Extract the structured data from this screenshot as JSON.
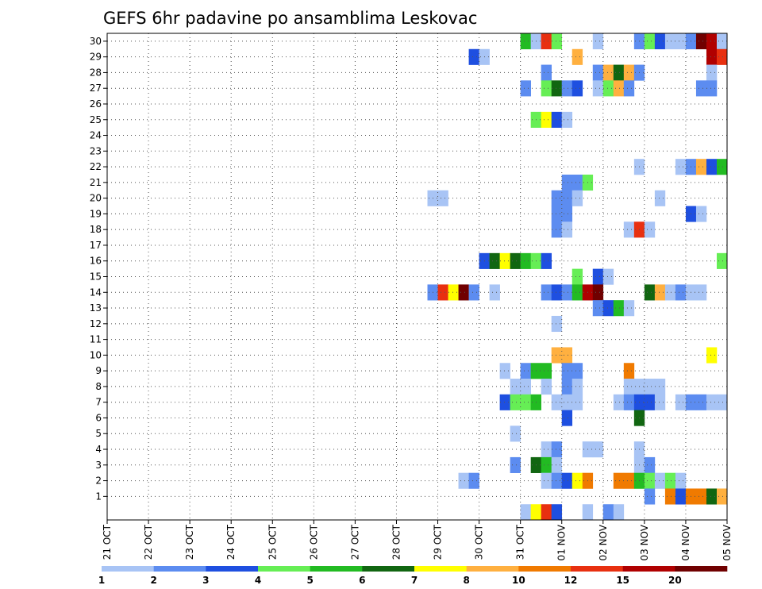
{
  "chart_data": {
    "type": "heatmap",
    "title": "GEFS 6hr padavine po ansamblima Leskovac",
    "xlabel": "",
    "ylabel": "",
    "x_tick_labels": [
      "21 OCT",
      "22 OCT",
      "23 OCT",
      "24 OCT",
      "25 OCT",
      "26 OCT",
      "27 OCT",
      "28 OCT",
      "29 OCT",
      "30 OCT",
      "31 OCT",
      "01 NOV",
      "02 NOV",
      "03 NOV",
      "04 NOV",
      "05 NOV"
    ],
    "y_tick_labels": [
      "1",
      "2",
      "3",
      "4",
      "5",
      "6",
      "7",
      "8",
      "9",
      "10",
      "11",
      "12",
      "13",
      "14",
      "15",
      "16",
      "17",
      "18",
      "19",
      "20",
      "21",
      "22",
      "23",
      "24",
      "25",
      "26",
      "27",
      "28",
      "29",
      "30"
    ],
    "x_range_days": [
      0,
      15
    ],
    "y_range_members": [
      0,
      30
    ],
    "time_step_hours": 6,
    "grid": "dotted",
    "legend": {
      "placement": "bottom",
      "labels": [
        "1",
        "2",
        "3",
        "4",
        "5",
        "6",
        "7",
        "8",
        "10",
        "12",
        "15",
        "20"
      ],
      "colors": [
        "#a8c4f5",
        "#5c8cf0",
        "#1e4fe0",
        "#66ee55",
        "#22bb22",
        "#116611",
        "#ffff00",
        "#ffb040",
        "#f07a00",
        "#e83010",
        "#b00000",
        "#700000"
      ]
    },
    "cells": [
      [
        "30",
        "31 OCT 00",
        5
      ],
      [
        "30",
        "31 OCT 06",
        1
      ],
      [
        "30",
        "31 OCT 12",
        10
      ],
      [
        "30",
        "31 OCT 18",
        4
      ],
      [
        "30",
        "01 NOV 18",
        1
      ],
      [
        "30",
        "02 NOV 18",
        2
      ],
      [
        "30",
        "03 NOV 00",
        4
      ],
      [
        "30",
        "03 NOV 06",
        3
      ],
      [
        "30",
        "03 NOV 12",
        1
      ],
      [
        "30",
        "03 NOV 18",
        1
      ],
      [
        "30",
        "04 NOV 00",
        2
      ],
      [
        "30",
        "04 NOV 06",
        12
      ],
      [
        "30",
        "04 NOV 12",
        11
      ],
      [
        "30",
        "04 NOV 18",
        1
      ],
      [
        "30",
        "05 NOV 00",
        1
      ],
      [
        "29",
        "29 OCT 18",
        3
      ],
      [
        "29",
        "30 OCT 00",
        1
      ],
      [
        "29",
        "01 NOV 06",
        8
      ],
      [
        "29",
        "04 NOV 12",
        11
      ],
      [
        "29",
        "04 NOV 18",
        10
      ],
      [
        "29",
        "05 NOV 00",
        4
      ],
      [
        "29",
        "05 NOV 06",
        2
      ],
      [
        "28",
        "31 OCT 12",
        2
      ],
      [
        "28",
        "01 NOV 18",
        2
      ],
      [
        "28",
        "02 NOV 00",
        8
      ],
      [
        "28",
        "02 NOV 06",
        6
      ],
      [
        "28",
        "02 NOV 12",
        8
      ],
      [
        "28",
        "02 NOV 18",
        2
      ],
      [
        "28",
        "04 NOV 12",
        1
      ],
      [
        "28",
        "05 NOV 00",
        2
      ],
      [
        "28",
        "05 NOV 06",
        1
      ],
      [
        "27",
        "31 OCT 00",
        2
      ],
      [
        "27",
        "31 OCT 12",
        4
      ],
      [
        "27",
        "31 OCT 18",
        6
      ],
      [
        "27",
        "01 NOV 00",
        2
      ],
      [
        "27",
        "01 NOV 06",
        3
      ],
      [
        "27",
        "01 NOV 18",
        1
      ],
      [
        "27",
        "02 NOV 00",
        4
      ],
      [
        "27",
        "02 NOV 06",
        8
      ],
      [
        "27",
        "02 NOV 12",
        2
      ],
      [
        "27",
        "04 NOV 06",
        2
      ],
      [
        "27",
        "04 NOV 12",
        2
      ],
      [
        "27",
        "05 NOV 06",
        2
      ],
      [
        "27",
        "05 NOV 12",
        11
      ],
      [
        "25",
        "31 OCT 06",
        4
      ],
      [
        "25",
        "31 OCT 12",
        7
      ],
      [
        "25",
        "31 OCT 18",
        3
      ],
      [
        "25",
        "01 NOV 00",
        1
      ],
      [
        "23",
        "05 NOV 12",
        1
      ],
      [
        "22",
        "02 NOV 18",
        1
      ],
      [
        "22",
        "03 NOV 18",
        1
      ],
      [
        "22",
        "04 NOV 00",
        2
      ],
      [
        "22",
        "04 NOV 06",
        8
      ],
      [
        "22",
        "04 NOV 12",
        3
      ],
      [
        "22",
        "04 NOV 18",
        5
      ],
      [
        "22",
        "05 NOV 00",
        1
      ],
      [
        "21",
        "01 NOV 00",
        2
      ],
      [
        "21",
        "01 NOV 06",
        2
      ],
      [
        "21",
        "01 NOV 12",
        4
      ],
      [
        "20",
        "28 OCT 18",
        1
      ],
      [
        "20",
        "29 OCT 00",
        1
      ],
      [
        "20",
        "31 OCT 18",
        2
      ],
      [
        "20",
        "01 NOV 00",
        2
      ],
      [
        "20",
        "01 NOV 06",
        1
      ],
      [
        "20",
        "03 NOV 06",
        1
      ],
      [
        "20",
        "05 NOV 12",
        2
      ],
      [
        "19",
        "31 OCT 18",
        2
      ],
      [
        "19",
        "01 NOV 00",
        2
      ],
      [
        "19",
        "04 NOV 00",
        3
      ],
      [
        "19",
        "04 NOV 06",
        1
      ],
      [
        "18",
        "31 OCT 18",
        2
      ],
      [
        "18",
        "01 NOV 00",
        1
      ],
      [
        "18",
        "02 NOV 12",
        1
      ],
      [
        "18",
        "02 NOV 18",
        10
      ],
      [
        "18",
        "03 NOV 00",
        1
      ],
      [
        "17",
        "05 NOV 06",
        2
      ],
      [
        "17",
        "05 NOV 12",
        2
      ],
      [
        "16",
        "30 OCT 00",
        3
      ],
      [
        "16",
        "30 OCT 06",
        6
      ],
      [
        "16",
        "30 OCT 12",
        7
      ],
      [
        "16",
        "30 OCT 18",
        6
      ],
      [
        "16",
        "31 OCT 00",
        5
      ],
      [
        "16",
        "31 OCT 06",
        4
      ],
      [
        "16",
        "31 OCT 12",
        3
      ],
      [
        "16",
        "04 NOV 18",
        4
      ],
      [
        "16",
        "05 NOV 00",
        1
      ],
      [
        "16",
        "05 NOV 06",
        1
      ],
      [
        "15",
        "01 NOV 06",
        4
      ],
      [
        "15",
        "01 NOV 18",
        3
      ],
      [
        "15",
        "02 NOV 00",
        1
      ],
      [
        "14",
        "28 OCT 18",
        2
      ],
      [
        "14",
        "29 OCT 00",
        10
      ],
      [
        "14",
        "29 OCT 06",
        7
      ],
      [
        "14",
        "29 OCT 12",
        12
      ],
      [
        "14",
        "29 OCT 18",
        2
      ],
      [
        "14",
        "30 OCT 06",
        1
      ],
      [
        "14",
        "31 OCT 12",
        2
      ],
      [
        "14",
        "31 OCT 18",
        3
      ],
      [
        "14",
        "01 NOV 00",
        2
      ],
      [
        "14",
        "01 NOV 06",
        5
      ],
      [
        "14",
        "01 NOV 12",
        11
      ],
      [
        "14",
        "01 NOV 18",
        12
      ],
      [
        "14",
        "03 NOV 00",
        6
      ],
      [
        "14",
        "03 NOV 06",
        8
      ],
      [
        "14",
        "03 NOV 12",
        1
      ],
      [
        "14",
        "03 NOV 18",
        2
      ],
      [
        "14",
        "04 NOV 00",
        1
      ],
      [
        "14",
        "04 NOV 06",
        1
      ],
      [
        "13",
        "01 NOV 18",
        2
      ],
      [
        "13",
        "02 NOV 00",
        3
      ],
      [
        "13",
        "02 NOV 06",
        5
      ],
      [
        "13",
        "02 NOV 12",
        1
      ],
      [
        "12",
        "31 OCT 18",
        1
      ],
      [
        "11",
        "05 NOV 00",
        1
      ],
      [
        "10",
        "31 OCT 18",
        8
      ],
      [
        "10",
        "01 NOV 00",
        8
      ],
      [
        "10",
        "04 NOV 12",
        7
      ],
      [
        "9",
        "30 OCT 12",
        1
      ],
      [
        "9",
        "31 OCT 00",
        2
      ],
      [
        "9",
        "31 OCT 06",
        5
      ],
      [
        "9",
        "31 OCT 12",
        5
      ],
      [
        "9",
        "01 NOV 00",
        2
      ],
      [
        "9",
        "01 NOV 06",
        2
      ],
      [
        "9",
        "02 NOV 12",
        9
      ],
      [
        "9",
        "05 NOV 06",
        2
      ],
      [
        "8",
        "30 OCT 18",
        1
      ],
      [
        "8",
        "31 OCT 00",
        1
      ],
      [
        "8",
        "31 OCT 12",
        1
      ],
      [
        "8",
        "01 NOV 00",
        2
      ],
      [
        "8",
        "01 NOV 06",
        1
      ],
      [
        "8",
        "02 NOV 12",
        1
      ],
      [
        "8",
        "02 NOV 18",
        1
      ],
      [
        "8",
        "03 NOV 00",
        1
      ],
      [
        "8",
        "03 NOV 06",
        1
      ],
      [
        "7",
        "30 OCT 12",
        3
      ],
      [
        "7",
        "30 OCT 18",
        4
      ],
      [
        "7",
        "31 OCT 00",
        4
      ],
      [
        "7",
        "31 OCT 06",
        5
      ],
      [
        "7",
        "31 OCT 18",
        1
      ],
      [
        "7",
        "01 NOV 00",
        1
      ],
      [
        "7",
        "01 NOV 06",
        1
      ],
      [
        "7",
        "02 NOV 06",
        1
      ],
      [
        "7",
        "02 NOV 12",
        2
      ],
      [
        "7",
        "02 NOV 18",
        3
      ],
      [
        "7",
        "03 NOV 00",
        3
      ],
      [
        "7",
        "03 NOV 06",
        1
      ],
      [
        "7",
        "03 NOV 18",
        1
      ],
      [
        "7",
        "04 NOV 00",
        2
      ],
      [
        "7",
        "04 NOV 06",
        2
      ],
      [
        "7",
        "04 NOV 12",
        1
      ],
      [
        "7",
        "04 NOV 18",
        1
      ],
      [
        "6",
        "01 NOV 00",
        3
      ],
      [
        "6",
        "02 NOV 18",
        6
      ],
      [
        "5",
        "30 OCT 18",
        1
      ],
      [
        "4",
        "31 OCT 12",
        1
      ],
      [
        "4",
        "31 OCT 18",
        2
      ],
      [
        "4",
        "01 NOV 12",
        1
      ],
      [
        "4",
        "01 NOV 18",
        1
      ],
      [
        "4",
        "02 NOV 18",
        1
      ],
      [
        "3",
        "30 OCT 18",
        2
      ],
      [
        "3",
        "31 OCT 06",
        6
      ],
      [
        "3",
        "31 OCT 12",
        5
      ],
      [
        "3",
        "31 OCT 18",
        1
      ],
      [
        "3",
        "02 NOV 18",
        1
      ],
      [
        "3",
        "03 NOV 00",
        2
      ],
      [
        "2",
        "29 OCT 12",
        1
      ],
      [
        "2",
        "29 OCT 18",
        2
      ],
      [
        "2",
        "31 OCT 12",
        1
      ],
      [
        "2",
        "31 OCT 18",
        2
      ],
      [
        "2",
        "01 NOV 00",
        3
      ],
      [
        "2",
        "01 NOV 06",
        7
      ],
      [
        "2",
        "01 NOV 12",
        9
      ],
      [
        "2",
        "02 NOV 06",
        9
      ],
      [
        "2",
        "02 NOV 12",
        9
      ],
      [
        "2",
        "02 NOV 18",
        5
      ],
      [
        "2",
        "03 NOV 00",
        4
      ],
      [
        "2",
        "03 NOV 06",
        1
      ],
      [
        "2",
        "03 NOV 12",
        4
      ],
      [
        "2",
        "03 NOV 18",
        1
      ],
      [
        "1",
        "03 NOV 00",
        2
      ],
      [
        "1",
        "03 NOV 12",
        9
      ],
      [
        "1",
        "03 NOV 18",
        3
      ],
      [
        "1",
        "04 NOV 00",
        9
      ],
      [
        "1",
        "04 NOV 06",
        9
      ],
      [
        "1",
        "04 NOV 12",
        6
      ],
      [
        "1",
        "04 NOV 18",
        8
      ],
      [
        "1",
        "05 NOV 00",
        8
      ],
      [
        "1",
        "05 NOV 06",
        4
      ],
      [
        "1",
        "05 NOV 12",
        3
      ],
      [
        "1",
        "05 NOV 18",
        3
      ],
      [
        "0",
        "31 OCT 00",
        1
      ],
      [
        "0",
        "31 OCT 06",
        7
      ],
      [
        "0",
        "31 OCT 12",
        10
      ],
      [
        "0",
        "31 OCT 18",
        3
      ],
      [
        "0",
        "01 NOV 12",
        1
      ],
      [
        "0",
        "02 NOV 00",
        2
      ],
      [
        "0",
        "02 NOV 06",
        1
      ]
    ]
  }
}
